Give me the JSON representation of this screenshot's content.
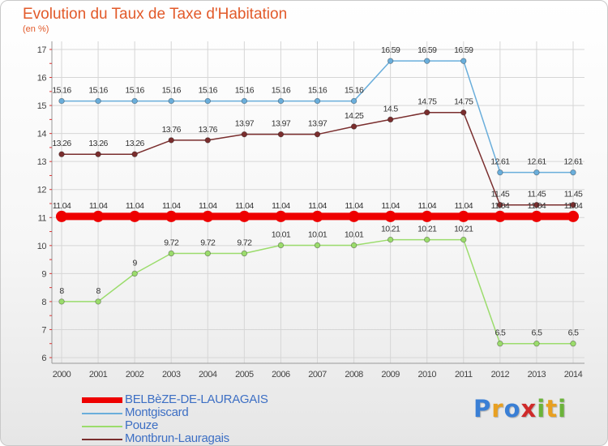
{
  "header": {
    "title": "Evolution du Taux de Taxe d'Habitation",
    "unit": "(en %)"
  },
  "brand": {
    "name": "Proxiti",
    "letters": [
      {
        "char": "P",
        "color": "#3a7fd5"
      },
      {
        "char": "r",
        "color": "#e8a021"
      },
      {
        "char": "o",
        "color": "#3a7fd5"
      },
      {
        "char": "x",
        "color": "#cf2a2a"
      },
      {
        "char": "i",
        "color": "#6bb33a"
      },
      {
        "char": "t",
        "color": "#e8a021"
      },
      {
        "char": "i",
        "color": "#6bb33a"
      }
    ]
  },
  "chart_data": {
    "type": "line",
    "title": "Evolution du Taux de Taxe d'Habitation",
    "ylabel": "(en %)",
    "xlabel": "",
    "x": [
      "2000",
      "2001",
      "2002",
      "2003",
      "2004",
      "2005",
      "2006",
      "2007",
      "2008",
      "2009",
      "2010",
      "2011",
      "2012",
      "2013",
      "2014"
    ],
    "ylim": [
      6,
      17
    ],
    "yticks": [
      "6",
      "7",
      "8",
      "9",
      "10",
      "11",
      "12",
      "13",
      "14",
      "15",
      "16",
      "17"
    ],
    "grid": true,
    "legend_position": "bottom-left",
    "series": [
      {
        "name": "BELBèZE-DE-LAURAGAIS",
        "color": "#ee0000",
        "thick": true,
        "values": [
          11.04,
          11.04,
          11.04,
          11.04,
          11.04,
          11.04,
          11.04,
          11.04,
          11.04,
          11.04,
          11.04,
          11.04,
          11.04,
          11.04,
          11.04
        ],
        "labels": [
          "11.04",
          "11.04",
          "11.04",
          "11.04",
          "11.04",
          "11.04",
          "11.04",
          "11.04",
          "11.04",
          "11.04",
          "11.04",
          "11.04",
          "11.04",
          "11.04",
          "11.04"
        ]
      },
      {
        "name": "Montgiscard",
        "color": "#6aaedb",
        "thick": false,
        "values": [
          15.16,
          15.16,
          15.16,
          15.16,
          15.16,
          15.16,
          15.16,
          15.16,
          15.16,
          16.59,
          16.59,
          16.59,
          12.61,
          12.61,
          12.61
        ],
        "labels": [
          "15.16",
          "15.16",
          "15.16",
          "15.16",
          "15.16",
          "15.16",
          "15.16",
          "15.16",
          "15.16",
          "16.59",
          "16.59",
          "16.59",
          "12.61",
          "12.61",
          "12.61"
        ]
      },
      {
        "name": "Pouze",
        "color": "#9bdc6c",
        "thick": false,
        "values": [
          8,
          8,
          9,
          9.72,
          9.72,
          9.72,
          10.01,
          10.01,
          10.01,
          10.21,
          10.21,
          10.21,
          6.5,
          6.5,
          6.5
        ],
        "labels": [
          "8",
          "8",
          "9",
          "9.72",
          "9.72",
          "9.72",
          "10.01",
          "10.01",
          "10.01",
          "10.21",
          "10.21",
          "10.21",
          "6.5",
          "6.5",
          "6.5"
        ]
      },
      {
        "name": "Montbrun-Lauragais",
        "color": "#7a2e2e",
        "thick": false,
        "values": [
          13.26,
          13.26,
          13.26,
          13.76,
          13.76,
          13.97,
          13.97,
          13.97,
          14.25,
          14.5,
          14.75,
          14.75,
          11.45,
          11.45,
          11.45
        ],
        "labels": [
          "13.26",
          "13.26",
          "13.26",
          "13.76",
          "13.76",
          "13.97",
          "13.97",
          "13.97",
          "14.25",
          "14.5",
          "14.75",
          "14.75",
          "11.45",
          "11.45",
          "11.45"
        ]
      }
    ]
  }
}
